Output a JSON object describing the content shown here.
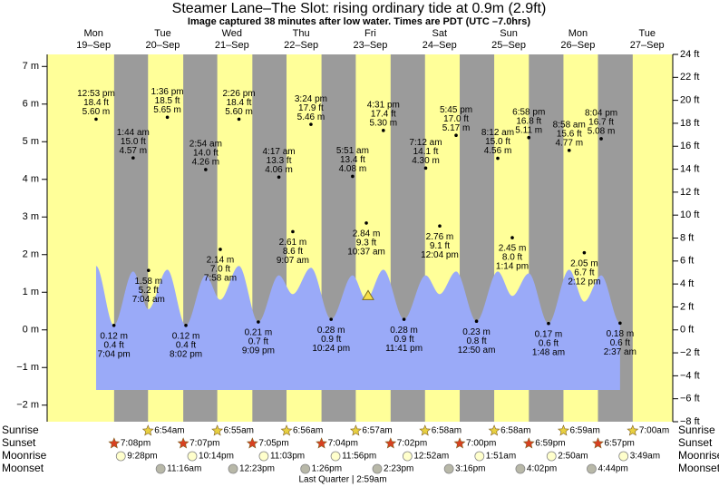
{
  "chart_data": {
    "type": "area",
    "title": "Steamer Lane–The Slot: rising  ordinary tide at 0.9m (2.9ft)",
    "subtitle": "Image captured 38 minutes after low water. Times are PDT (UTC –7.0hrs)",
    "ylim": [
      -2.44,
      7.32
    ],
    "yticks": [
      {
        "value": -2,
        "label": "−2 m"
      },
      {
        "value": -1,
        "label": "−1 m"
      },
      {
        "value": 0,
        "label": "0 m"
      },
      {
        "value": 1,
        "label": "1 m"
      },
      {
        "value": 2,
        "label": "2 m"
      },
      {
        "value": 3,
        "label": "3 m"
      },
      {
        "value": 4,
        "label": "4 m"
      },
      {
        "value": 5,
        "label": "5 m"
      },
      {
        "value": 6,
        "label": "6 m"
      },
      {
        "value": 7,
        "label": "7 m"
      }
    ],
    "y2lim": [
      -8,
      24
    ],
    "y2ticks": [
      {
        "value": -8,
        "label": "−8 ft"
      },
      {
        "value": -6,
        "label": "−6 ft"
      },
      {
        "value": -4,
        "label": "−4 ft"
      },
      {
        "value": -2,
        "label": "−2 ft"
      },
      {
        "value": 0,
        "label": "0 ft"
      },
      {
        "value": 2,
        "label": "2 ft"
      },
      {
        "value": 4,
        "label": "4 ft"
      },
      {
        "value": 6,
        "label": "6 ft"
      },
      {
        "value": 8,
        "label": "8 ft"
      },
      {
        "value": 10,
        "label": "10 ft"
      },
      {
        "value": 12,
        "label": "12 ft"
      },
      {
        "value": 14,
        "label": "14 ft"
      },
      {
        "value": 16,
        "label": "16 ft"
      },
      {
        "value": 18,
        "label": "18 ft"
      },
      {
        "value": 20,
        "label": "20 ft"
      },
      {
        "value": 22,
        "label": "22 ft"
      },
      {
        "value": 24,
        "label": "24 ft"
      }
    ],
    "colors": {
      "day": "#ffff99",
      "night": "#9b9b9b",
      "water": "#9aaaf8",
      "date": "#e00000",
      "sunrise": "#e8d040",
      "sunset": "#d84020",
      "moonrise": "#ffffcc",
      "moonset": "#b8b8a8"
    },
    "current": {
      "m": 0.9
    },
    "row_labels": [
      "Sunrise",
      "Sunset",
      "Moonrise",
      "Moonset"
    ],
    "moon_phase": "Last Quarter | 2:59am",
    "days": [
      {
        "dow": "Mon",
        "date": "19–Sep",
        "sunset": "7:08pm",
        "moonrise": "9:28pm",
        "tides": [
          {
            "time": "12:53 pm",
            "ft": 18.4,
            "ft_label": "18.4 ft",
            "m": 5.6,
            "m_label": "5.60 m",
            "curve_m": 1.7
          },
          {
            "time": "7:04 pm",
            "ft": 0.4,
            "ft_label": "0.4 ft",
            "m": 0.12,
            "m_label": "0.12 m",
            "curve_m": 0.12
          }
        ]
      },
      {
        "dow": "Tue",
        "date": "20–Sep",
        "sunrise": "6:54am",
        "sunset": "7:07pm",
        "moonrise": "10:14pm",
        "moonset": "11:16am",
        "tides": [
          {
            "time": "1:44 am",
            "ft": 15.0,
            "ft_label": "15.0 ft",
            "m": 4.57,
            "m_label": "4.57 m",
            "curve_m": 1.55
          },
          {
            "time": "7:04 am",
            "ft": 5.2,
            "ft_label": "5.2 ft",
            "m": 1.58,
            "m_label": "1.58 m",
            "curve_m": 0.55
          },
          {
            "time": "1:36 pm",
            "ft": 18.5,
            "ft_label": "18.5 ft",
            "m": 5.65,
            "m_label": "5.65 m",
            "curve_m": 1.6
          },
          {
            "time": "8:02 pm",
            "ft": 0.4,
            "ft_label": "0.4 ft",
            "m": 0.12,
            "m_label": "0.12 m",
            "curve_m": 0.12
          }
        ]
      },
      {
        "dow": "Wed",
        "date": "21–Sep",
        "sunrise": "6:55am",
        "sunset": "7:05pm",
        "moonrise": "11:03pm",
        "moonset": "12:23pm",
        "tides": [
          {
            "time": "2:54 am",
            "ft": 14.0,
            "ft_label": "14.0 ft",
            "m": 4.26,
            "m_label": "4.26 m",
            "curve_m": 1.45
          },
          {
            "time": "7:58 am",
            "ft": 7.0,
            "ft_label": "7.0 ft",
            "m": 2.14,
            "m_label": "2.14 m",
            "curve_m": 0.8
          },
          {
            "time": "2:26 pm",
            "ft": 18.4,
            "ft_label": "18.4 ft",
            "m": 5.6,
            "m_label": "5.60 m",
            "curve_m": 1.7
          },
          {
            "time": "9:09 pm",
            "ft": 0.7,
            "ft_label": "0.7 ft",
            "m": 0.21,
            "m_label": "0.21 m",
            "curve_m": 0.21
          }
        ]
      },
      {
        "dow": "Thu",
        "date": "22–Sep",
        "sunrise": "6:56am",
        "sunset": "7:04pm",
        "moonrise": "11:56pm",
        "moonset": "1:26pm",
        "tides": [
          {
            "time": "4:17 am",
            "ft": 13.3,
            "ft_label": "13.3 ft",
            "m": 4.06,
            "m_label": "4.06 m",
            "curve_m": 1.45
          },
          {
            "time": "9:07 am",
            "ft": 8.6,
            "ft_label": "8.6 ft",
            "m": 2.61,
            "m_label": "2.61 m",
            "curve_m": 0.95
          },
          {
            "time": "3:24 pm",
            "ft": 17.9,
            "ft_label": "17.9 ft",
            "m": 5.46,
            "m_label": "5.46 m",
            "curve_m": 1.65
          },
          {
            "time": "10:24 pm",
            "ft": 0.9,
            "ft_label": "0.9 ft",
            "m": 0.28,
            "m_label": "0.28 m",
            "curve_m": 0.28
          }
        ]
      },
      {
        "dow": "Fri",
        "date": "23–Sep",
        "sunrise": "6:57am",
        "sunset": "7:02pm",
        "moonset": "2:23pm",
        "tides": [
          {
            "time": "5:51 am",
            "ft": 13.4,
            "ft_label": "13.4 ft",
            "m": 4.08,
            "m_label": "4.08 m",
            "curve_m": 1.45
          },
          {
            "time": "10:37 am",
            "ft": 9.3,
            "ft_label": "9.3 ft",
            "m": 2.84,
            "m_label": "2.84 m",
            "curve_m": 0.8
          },
          {
            "time": "4:31 pm",
            "ft": 17.4,
            "ft_label": "17.4 ft",
            "m": 5.3,
            "m_label": "5.30 m",
            "curve_m": 1.6
          },
          {
            "time": "11:41 pm",
            "ft": 0.9,
            "ft_label": "0.9 ft",
            "m": 0.28,
            "m_label": "0.28 m",
            "curve_m": 0.28
          }
        ]
      },
      {
        "dow": "Sat",
        "date": "24–Sep",
        "sunrise": "6:58am",
        "sunset": "7:00pm",
        "moonrise": "12:52am",
        "moonset": "3:16pm",
        "tides": [
          {
            "time": "7:12 am",
            "ft": 14.1,
            "ft_label": "14.1 ft",
            "m": 4.3,
            "m_label": "4.30 m",
            "curve_m": 1.45
          },
          {
            "time": "12:04 pm",
            "ft": 9.1,
            "ft_label": "9.1 ft",
            "m": 2.76,
            "m_label": "2.76 m",
            "curve_m": 0.95
          },
          {
            "time": "5:45 pm",
            "ft": 17.0,
            "ft_label": "17.0 ft",
            "m": 5.17,
            "m_label": "5.17 m",
            "curve_m": 1.55
          }
        ]
      },
      {
        "dow": "Sun",
        "date": "25–Sep",
        "sunrise": "6:58am",
        "sunset": "6:59pm",
        "moonrise": "1:51am",
        "moonset": "4:02pm",
        "tides": [
          {
            "time": "12:50 am",
            "ft": 0.8,
            "ft_label": "0.8 ft",
            "m": 0.23,
            "m_label": "0.23 m",
            "curve_m": 0.23
          },
          {
            "time": "8:12 am",
            "ft": 15.0,
            "ft_label": "15.0 ft",
            "m": 4.56,
            "m_label": "4.56 m",
            "curve_m": 1.55
          },
          {
            "time": "1:14 pm",
            "ft": 8.0,
            "ft_label": "8.0 ft",
            "m": 2.45,
            "m_label": "2.45 m",
            "curve_m": 0.9
          },
          {
            "time": "6:58 pm",
            "ft": 16.8,
            "ft_label": "16.8 ft",
            "m": 5.11,
            "m_label": "5.11 m",
            "curve_m": 1.5
          }
        ]
      },
      {
        "dow": "Mon",
        "date": "26–Sep",
        "sunrise": "6:59am",
        "sunset": "6:57pm",
        "moonrise": "2:50am",
        "moonset": "4:44pm",
        "tides": [
          {
            "time": "1:48 am",
            "ft": 0.6,
            "ft_label": "0.6 ft",
            "m": 0.17,
            "m_label": "0.17 m",
            "curve_m": 0.17
          },
          {
            "time": "8:58 am",
            "ft": 15.6,
            "ft_label": "15.6 ft",
            "m": 4.77,
            "m_label": "4.77 m",
            "curve_m": 1.6
          },
          {
            "time": "2:12 pm",
            "ft": 6.7,
            "ft_label": "6.7 ft",
            "m": 2.05,
            "m_label": "2.05 m",
            "curve_m": 0.75
          },
          {
            "time": "8:04 pm",
            "ft": 16.7,
            "ft_label": "16.7 ft",
            "m": 5.08,
            "m_label": "5.08 m",
            "curve_m": 1.45
          }
        ]
      },
      {
        "dow": "Tue",
        "date": "27–Sep",
        "sunrise": "7:00am",
        "moonrise": "3:49am",
        "tides": [
          {
            "time": "2:37 am",
            "ft": 0.6,
            "ft_label": "0.6 ft",
            "m": 0.18,
            "m_label": "0.18 m",
            "curve_m": 0.18
          }
        ]
      }
    ]
  }
}
